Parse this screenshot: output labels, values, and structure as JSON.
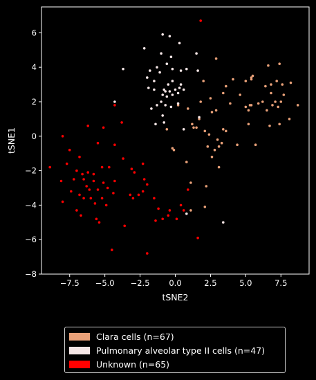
{
  "chart_data": {
    "type": "scatter",
    "xlabel": "tSNE2",
    "ylabel": "tSNE1",
    "xlim": [
      -9.5,
      9.5
    ],
    "ylim": [
      -8,
      7.5
    ],
    "xticks": [
      -7.5,
      -5.0,
      -2.5,
      0.0,
      2.5,
      5.0,
      7.5
    ],
    "yticks": [
      -8,
      -6,
      -4,
      -2,
      0,
      2,
      4,
      6
    ],
    "xtick_labels": [
      "−7.5",
      "−5.0",
      "−2.5",
      "0.0",
      "2.5",
      "5.0",
      "7.5"
    ],
    "ytick_labels": [
      "−8",
      "−6",
      "−4",
      "−2",
      "0",
      "2",
      "4",
      "6"
    ],
    "grid": false,
    "legend_position": "bottom-center",
    "series": [
      {
        "name": "Clara cells (n=67)",
        "color": "#e8a078",
        "points": [
          [
            2.9,
            4.5
          ],
          [
            2.0,
            3.2
          ],
          [
            2.5,
            2.2
          ],
          [
            1.8,
            2.0
          ],
          [
            3.6,
            2.9
          ],
          [
            4.1,
            3.3
          ],
          [
            3.4,
            2.5
          ],
          [
            2.9,
            1.5
          ],
          [
            2.6,
            1.4
          ],
          [
            1.7,
            1.0
          ],
          [
            1.2,
            0.7
          ],
          [
            1.5,
            0.5
          ],
          [
            1.3,
            0.5
          ],
          [
            2.1,
            0.3
          ],
          [
            2.4,
            0.1
          ],
          [
            3.0,
            -0.2
          ],
          [
            3.4,
            0.4
          ],
          [
            3.6,
            0.3
          ],
          [
            3.3,
            -0.4
          ],
          [
            3.1,
            -0.6
          ],
          [
            2.8,
            -0.8
          ],
          [
            2.3,
            -0.6
          ],
          [
            2.6,
            -1.2
          ],
          [
            3.1,
            -1.8
          ],
          [
            4.4,
            -0.5
          ],
          [
            3.9,
            1.9
          ],
          [
            4.6,
            2.4
          ],
          [
            5.0,
            1.7
          ],
          [
            5.3,
            1.8
          ],
          [
            5.4,
            1.8
          ],
          [
            5.2,
            1.5
          ],
          [
            5.0,
            3.2
          ],
          [
            5.4,
            3.3
          ],
          [
            5.5,
            3.5
          ],
          [
            5.4,
            3.4
          ],
          [
            5.9,
            1.9
          ],
          [
            6.2,
            2.0
          ],
          [
            6.4,
            2.9
          ],
          [
            6.8,
            3.0
          ],
          [
            6.6,
            4.1
          ],
          [
            7.2,
            3.2
          ],
          [
            7.4,
            4.2
          ],
          [
            7.6,
            3.0
          ],
          [
            7.7,
            2.4
          ],
          [
            7.5,
            2.0
          ],
          [
            7.3,
            1.7
          ],
          [
            7.1,
            2.0
          ],
          [
            6.9,
            1.8
          ],
          [
            6.8,
            2.5
          ],
          [
            6.5,
            1.5
          ],
          [
            6.7,
            0.6
          ],
          [
            7.4,
            0.7
          ],
          [
            8.1,
            1.0
          ],
          [
            8.2,
            3.1
          ],
          [
            8.7,
            1.8
          ],
          [
            5.2,
            0.7
          ],
          [
            5.7,
            -0.5
          ],
          [
            0.9,
            1.6
          ],
          [
            0.2,
            1.8
          ],
          [
            -0.6,
            0.4
          ],
          [
            -0.1,
            -0.8
          ],
          [
            -0.2,
            -0.7
          ],
          [
            0.8,
            -1.5
          ],
          [
            1.1,
            -2.7
          ],
          [
            2.1,
            -4.1
          ],
          [
            1.1,
            -4.3
          ],
          [
            2.2,
            -2.9
          ]
        ]
      },
      {
        "name": "Pulmonary alveolar type II cells (n=47)",
        "color": "#f5e6e6",
        "points": [
          [
            -0.9,
            5.9
          ],
          [
            -0.4,
            5.8
          ],
          [
            0.3,
            5.4
          ],
          [
            -2.2,
            5.1
          ],
          [
            -1.0,
            4.8
          ],
          [
            -0.3,
            4.6
          ],
          [
            1.5,
            4.8
          ],
          [
            -0.6,
            4.2
          ],
          [
            -1.3,
            4.0
          ],
          [
            -1.8,
            3.8
          ],
          [
            -1.1,
            3.7
          ],
          [
            -0.2,
            3.9
          ],
          [
            0.4,
            3.8
          ],
          [
            0.8,
            3.9
          ],
          [
            1.6,
            3.8
          ],
          [
            -3.7,
            3.9
          ],
          [
            -2.0,
            3.4
          ],
          [
            -1.5,
            3.2
          ],
          [
            -0.5,
            3.0
          ],
          [
            -0.2,
            3.2
          ],
          [
            0.4,
            3.0
          ],
          [
            -1.9,
            2.8
          ],
          [
            -1.5,
            2.7
          ],
          [
            -0.8,
            2.7
          ],
          [
            -0.7,
            2.6
          ],
          [
            -0.4,
            2.6
          ],
          [
            0.0,
            2.7
          ],
          [
            0.3,
            2.8
          ],
          [
            0.6,
            2.7
          ],
          [
            -0.9,
            2.4
          ],
          [
            -0.6,
            2.3
          ],
          [
            -0.2,
            2.4
          ],
          [
            0.2,
            2.5
          ],
          [
            -1.0,
            2.0
          ],
          [
            -1.3,
            1.8
          ],
          [
            -0.7,
            1.8
          ],
          [
            -0.3,
            1.7
          ],
          [
            0.2,
            1.9
          ],
          [
            -1.7,
            1.6
          ],
          [
            -0.9,
            1.2
          ],
          [
            -4.3,
            2.0
          ],
          [
            -1.4,
            0.7
          ],
          [
            -0.8,
            0.8
          ],
          [
            0.6,
            0.4
          ],
          [
            1.7,
            1.1
          ],
          [
            3.4,
            -5.0
          ],
          [
            0.8,
            -4.5
          ]
        ]
      },
      {
        "name": "Unknown (n=65)",
        "color": "#ff0000",
        "points": [
          [
            1.8,
            6.7
          ],
          [
            -4.3,
            1.8
          ],
          [
            -3.8,
            0.8
          ],
          [
            -6.2,
            0.6
          ],
          [
            -8.0,
            0.0
          ],
          [
            -5.1,
            0.5
          ],
          [
            -5.5,
            -0.4
          ],
          [
            -7.5,
            -0.8
          ],
          [
            -6.8,
            -1.2
          ],
          [
            -4.3,
            -0.5
          ],
          [
            -3.7,
            -1.3
          ],
          [
            -7.7,
            -1.6
          ],
          [
            -7.0,
            -2.0
          ],
          [
            -6.6,
            -2.2
          ],
          [
            -6.2,
            -2.1
          ],
          [
            -5.8,
            -2.2
          ],
          [
            -5.2,
            -1.8
          ],
          [
            -4.7,
            -1.8
          ],
          [
            -4.3,
            -2.6
          ],
          [
            -8.9,
            -1.8
          ],
          [
            -8.1,
            -2.6
          ],
          [
            -7.2,
            -2.5
          ],
          [
            -6.5,
            -2.5
          ],
          [
            -6.3,
            -2.9
          ],
          [
            -6.1,
            -3.1
          ],
          [
            -5.8,
            -2.6
          ],
          [
            -5.5,
            -3.1
          ],
          [
            -5.1,
            -2.7
          ],
          [
            -4.8,
            -3.0
          ],
          [
            -4.4,
            -3.3
          ],
          [
            -7.4,
            -3.2
          ],
          [
            -6.8,
            -3.4
          ],
          [
            -6.5,
            -3.6
          ],
          [
            -6.0,
            -3.6
          ],
          [
            -5.7,
            -3.9
          ],
          [
            -5.2,
            -3.6
          ],
          [
            -4.9,
            -4.0
          ],
          [
            -8.0,
            -3.8
          ],
          [
            -7.0,
            -4.3
          ],
          [
            -6.7,
            -4.6
          ],
          [
            -5.6,
            -4.8
          ],
          [
            -5.4,
            -5.0
          ],
          [
            -3.2,
            -3.4
          ],
          [
            -3.0,
            -3.6
          ],
          [
            -2.6,
            -3.4
          ],
          [
            -2.3,
            -3.2
          ],
          [
            -1.5,
            -3.6
          ],
          [
            -1.2,
            -4.2
          ],
          [
            -0.9,
            -4.8
          ],
          [
            -1.4,
            -4.9
          ],
          [
            -0.5,
            -4.6
          ],
          [
            -0.4,
            -4.3
          ],
          [
            0.1,
            -4.8
          ],
          [
            0.4,
            -4.0
          ],
          [
            0.6,
            -4.3
          ],
          [
            0.9,
            -3.1
          ],
          [
            -3.1,
            -1.9
          ],
          [
            -2.9,
            -2.1
          ],
          [
            -2.2,
            -2.5
          ],
          [
            -2.0,
            -2.8
          ],
          [
            -2.3,
            -1.6
          ],
          [
            -3.6,
            -5.2
          ],
          [
            -4.5,
            -6.6
          ],
          [
            -2.0,
            -6.8
          ],
          [
            1.6,
            -5.9
          ]
        ]
      }
    ]
  }
}
